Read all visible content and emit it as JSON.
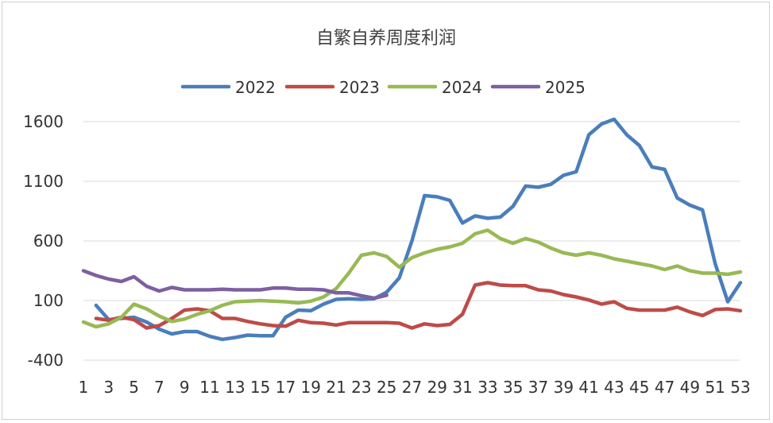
{
  "chart_data": {
    "type": "line",
    "title": "自繁自养周度利润",
    "xlabel": "",
    "ylabel": "",
    "x": [
      1,
      2,
      3,
      4,
      5,
      6,
      7,
      8,
      9,
      10,
      11,
      12,
      13,
      14,
      15,
      16,
      17,
      18,
      19,
      20,
      21,
      22,
      23,
      24,
      25,
      26,
      27,
      28,
      29,
      30,
      31,
      32,
      33,
      34,
      35,
      36,
      37,
      38,
      39,
      40,
      41,
      42,
      43,
      44,
      45,
      46,
      47,
      48,
      49,
      50,
      51,
      52,
      53
    ],
    "x_tick_labels": [
      "1",
      "3",
      "5",
      "7",
      "9",
      "11",
      "13",
      "15",
      "17",
      "19",
      "21",
      "23",
      "25",
      "27",
      "29",
      "31",
      "33",
      "35",
      "37",
      "39",
      "41",
      "43",
      "45",
      "47",
      "49",
      "51",
      "53"
    ],
    "y_tick_labels": [
      "1600",
      "1100",
      "600",
      "100",
      "-400"
    ],
    "ylim": [
      -400,
      1600
    ],
    "grid": true,
    "legend_position": "top",
    "series": [
      {
        "name": "2022",
        "color": "#4a7ebb",
        "values": [
          null,
          60,
          -60,
          -50,
          -40,
          -80,
          -140,
          -180,
          -160,
          -160,
          -200,
          -225,
          -210,
          -190,
          -195,
          -195,
          -40,
          20,
          15,
          70,
          110,
          115,
          110,
          115,
          170,
          290,
          600,
          980,
          970,
          940,
          750,
          810,
          790,
          800,
          890,
          1060,
          1050,
          1075,
          1150,
          1180,
          1490,
          1580,
          1620,
          1490,
          1400,
          1220,
          1200,
          960,
          900,
          860,
          410,
          90,
          250
        ]
      },
      {
        "name": "2023",
        "color": "#be4b48",
        "values": [
          null,
          -50,
          -65,
          -40,
          -60,
          -130,
          -110,
          -50,
          20,
          30,
          15,
          -50,
          -50,
          -75,
          -95,
          -110,
          -115,
          -65,
          -85,
          -90,
          -105,
          -85,
          -85,
          -85,
          -85,
          -90,
          -130,
          -95,
          -110,
          -100,
          -15,
          230,
          250,
          230,
          225,
          225,
          190,
          180,
          150,
          130,
          105,
          70,
          90,
          35,
          20,
          20,
          20,
          45,
          5,
          -25,
          25,
          30,
          15
        ]
      },
      {
        "name": "2024",
        "color": "#98b954",
        "values": [
          -80,
          -120,
          -95,
          -40,
          70,
          30,
          -30,
          -75,
          -55,
          -15,
          15,
          60,
          90,
          95,
          100,
          95,
          90,
          80,
          95,
          130,
          200,
          330,
          480,
          500,
          470,
          380,
          460,
          500,
          530,
          550,
          580,
          660,
          690,
          620,
          580,
          620,
          590,
          540,
          500,
          480,
          500,
          480,
          450,
          430,
          410,
          390,
          360,
          390,
          350,
          330,
          330,
          320,
          340
        ]
      },
      {
        "name": "2025",
        "color": "#7d60a0",
        "values": [
          350,
          310,
          280,
          260,
          300,
          220,
          180,
          210,
          190,
          190,
          190,
          195,
          190,
          190,
          190,
          205,
          205,
          195,
          195,
          190,
          165,
          165,
          140,
          120,
          145,
          null,
          null,
          null,
          null,
          null,
          null,
          null,
          null,
          null,
          null,
          null,
          null,
          null,
          null,
          null,
          null,
          null,
          null,
          null,
          null,
          null,
          null,
          null,
          null,
          null,
          null,
          null,
          null
        ]
      }
    ]
  }
}
